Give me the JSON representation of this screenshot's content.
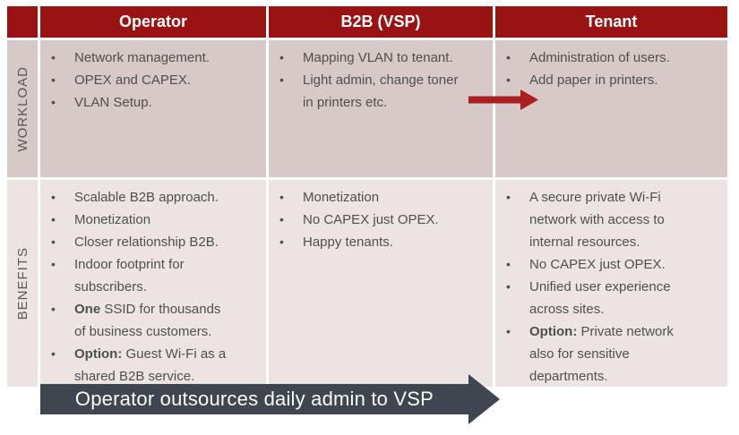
{
  "slide": {
    "columns": [
      "Operator",
      "B2B (VSP)",
      "Tenant"
    ],
    "row_labels": [
      "WORKLOAD",
      "BENEFITS"
    ],
    "cells": {
      "workload": {
        "operator": [
          "Network management.",
          "OPEX and CAPEX.",
          "VLAN Setup."
        ],
        "b2b": [
          "Mapping VLAN to tenant.",
          "Light admin, change toner in printers etc."
        ],
        "tenant": [
          "Administration of users.",
          "Add paper in printers."
        ]
      },
      "benefits": {
        "operator": [
          "Scalable B2B approach.",
          "Monetization",
          "Closer relationship B2B.",
          "Indoor footprint for subscribers.",
          "**One** SSID for thousands of business customers.",
          "**Option:** Guest Wi-Fi as a shared B2B service."
        ],
        "b2b": [
          "Monetization",
          "No CAPEX just OPEX.",
          "Happy tenants."
        ],
        "tenant": [
          "A secure private Wi-Fi network with access to internal resources.",
          "No CAPEX just OPEX.",
          "Unified user experience across sites.",
          "**Option:** Private network also for sensitive departments."
        ]
      }
    },
    "workload_arrow_icon": "right-arrow",
    "outsource_arrow": {
      "label": "Operator outsources daily admin to VSP"
    },
    "colors": {
      "header_red": "#9a1313",
      "workload_bg": "#d6c9c7",
      "benefits_bg": "#ece4e3",
      "accent_arrow_red": "#aa1f1f",
      "outsource_arrow_gray": "#3f464f",
      "body_text": "#4f4f4f",
      "label_text": "#595959"
    }
  }
}
